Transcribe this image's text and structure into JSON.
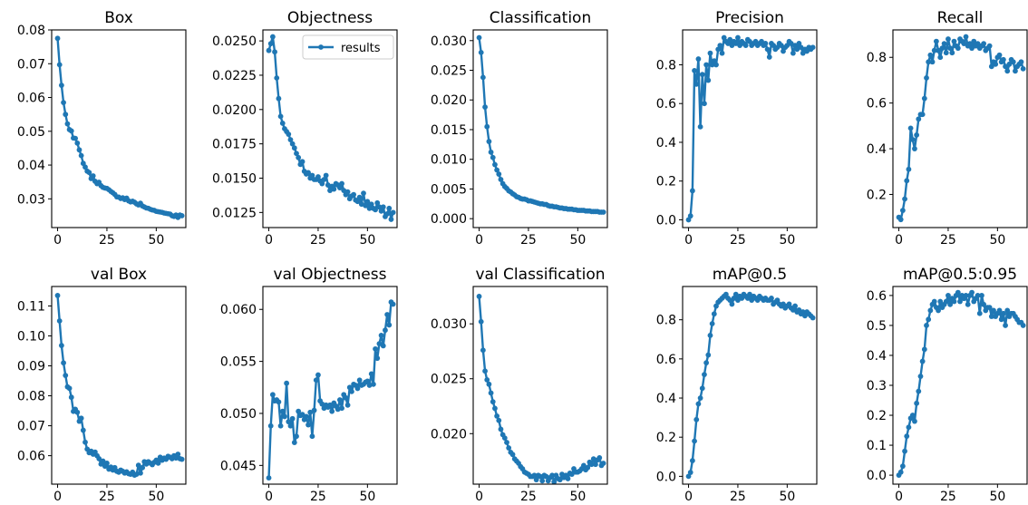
{
  "legend_label": "results",
  "line_color": "#1f77b4",
  "chart_data": [
    {
      "type": "line",
      "title": "Box",
      "xlim": [
        -3,
        65
      ],
      "ylim": [
        0.0215,
        0.08
      ],
      "xticks": [
        0,
        25,
        50
      ],
      "xtick_labels": [
        "0",
        "25",
        "50"
      ],
      "yticks": [
        0.03,
        0.04,
        0.05,
        0.06,
        0.07,
        0.08
      ],
      "ytick_labels": [
        "0.03",
        "0.04",
        "0.05",
        "0.06",
        "0.07",
        "0.08"
      ],
      "series": [
        {
          "values": [
            0.0775,
            0.0697,
            0.0636,
            0.0585,
            0.055,
            0.0522,
            0.0505,
            0.0501,
            0.048,
            0.0479,
            0.0465,
            0.0445,
            0.0428,
            0.0405,
            0.0394,
            0.0382,
            0.0378,
            0.036,
            0.0368,
            0.0352,
            0.0345,
            0.0349,
            0.0339,
            0.0334,
            0.0332,
            0.0331,
            0.0327,
            0.0322,
            0.0318,
            0.0313,
            0.0306,
            0.0305,
            0.0301,
            0.0303,
            0.0298,
            0.0302,
            0.0294,
            0.0291,
            0.0293,
            0.029,
            0.0285,
            0.0282,
            0.0287,
            0.0279,
            0.0276,
            0.0273,
            0.0272,
            0.0269,
            0.0267,
            0.0266,
            0.0263,
            0.0262,
            0.0261,
            0.026,
            0.0258,
            0.0257,
            0.0256,
            0.0255,
            0.025,
            0.0248,
            0.0252,
            0.0245,
            0.0252,
            0.025
          ]
        }
      ]
    },
    {
      "type": "line",
      "title": "Objectness",
      "xlim": [
        -3,
        65
      ],
      "ylim": [
        0.0114,
        0.0258
      ],
      "xticks": [
        0,
        25,
        50
      ],
      "xtick_labels": [
        "0",
        "25",
        "50"
      ],
      "yticks": [
        0.0125,
        0.015,
        0.0175,
        0.02,
        0.0225,
        0.025
      ],
      "ytick_labels": [
        "0.0125",
        "0.0150",
        "0.0175",
        "0.0200",
        "0.0225",
        "0.0250"
      ],
      "legend": [
        "results"
      ],
      "series": [
        {
          "name": "results",
          "values": [
            0.0243,
            0.0248,
            0.0253,
            0.0242,
            0.0223,
            0.0208,
            0.0195,
            0.019,
            0.0186,
            0.0184,
            0.0182,
            0.0178,
            0.0175,
            0.0172,
            0.0168,
            0.0165,
            0.016,
            0.0162,
            0.0155,
            0.0153,
            0.0154,
            0.015,
            0.0152,
            0.0149,
            0.0149,
            0.0151,
            0.0148,
            0.0146,
            0.0149,
            0.0152,
            0.0145,
            0.0141,
            0.0144,
            0.0142,
            0.0146,
            0.0145,
            0.0143,
            0.0146,
            0.0141,
            0.0138,
            0.014,
            0.0135,
            0.0137,
            0.0138,
            0.0134,
            0.0133,
            0.0136,
            0.0131,
            0.0139,
            0.013,
            0.0133,
            0.0128,
            0.0131,
            0.0128,
            0.0127,
            0.0132,
            0.0129,
            0.0126,
            0.0129,
            0.0122,
            0.0124,
            0.0128,
            0.012,
            0.0125
          ]
        }
      ]
    },
    {
      "type": "line",
      "title": "Classification",
      "xlim": [
        -3,
        65
      ],
      "ylim": [
        -0.0015,
        0.0318
      ],
      "xticks": [
        0,
        25,
        50
      ],
      "xtick_labels": [
        "0",
        "25",
        "50"
      ],
      "yticks": [
        0,
        0.005,
        0.01,
        0.015,
        0.02,
        0.025,
        0.03
      ],
      "ytick_labels": [
        "0.000",
        "0.005",
        "0.010",
        "0.015",
        "0.020",
        "0.025",
        "0.030"
      ],
      "series": [
        {
          "values": [
            0.0305,
            0.028,
            0.0238,
            0.0188,
            0.0155,
            0.013,
            0.0112,
            0.0103,
            0.0091,
            0.0082,
            0.0075,
            0.0066,
            0.0059,
            0.0054,
            0.0051,
            0.0047,
            0.0045,
            0.0042,
            0.004,
            0.0037,
            0.0036,
            0.0034,
            0.0033,
            0.0033,
            0.0032,
            0.003,
            0.003,
            0.0029,
            0.0028,
            0.0027,
            0.0026,
            0.0025,
            0.0025,
            0.0024,
            0.0024,
            0.0022,
            0.0021,
            0.0021,
            0.002,
            0.002,
            0.0019,
            0.0018,
            0.0018,
            0.0017,
            0.0017,
            0.0016,
            0.0016,
            0.0016,
            0.0015,
            0.0015,
            0.0014,
            0.0014,
            0.0014,
            0.0014,
            0.0013,
            0.0013,
            0.0013,
            0.0012,
            0.0012,
            0.0012,
            0.0012,
            0.0011,
            0.0011,
            0.0011
          ]
        }
      ]
    },
    {
      "type": "line",
      "title": "Precision",
      "xlim": [
        -3,
        65
      ],
      "ylim": [
        -0.04,
        0.98
      ],
      "xticks": [
        0,
        25,
        50
      ],
      "xtick_labels": [
        "0",
        "25",
        "50"
      ],
      "yticks": [
        0,
        0.2,
        0.4,
        0.6,
        0.8
      ],
      "ytick_labels": [
        "0.0",
        "0.2",
        "0.4",
        "0.6",
        "0.8"
      ],
      "series": [
        {
          "values": [
            0,
            0.02,
            0.15,
            0.77,
            0.7,
            0.83,
            0.48,
            0.75,
            0.6,
            0.8,
            0.72,
            0.86,
            0.8,
            0.82,
            0.8,
            0.88,
            0.9,
            0.86,
            0.94,
            0.92,
            0.91,
            0.93,
            0.9,
            0.92,
            0.91,
            0.94,
            0.9,
            0.92,
            0.91,
            0.9,
            0.93,
            0.92,
            0.9,
            0.91,
            0.92,
            0.9,
            0.91,
            0.92,
            0.9,
            0.91,
            0.88,
            0.84,
            0.91,
            0.9,
            0.88,
            0.89,
            0.91,
            0.9,
            0.87,
            0.89,
            0.9,
            0.92,
            0.91,
            0.86,
            0.9,
            0.88,
            0.91,
            0.89,
            0.86,
            0.88,
            0.87,
            0.89,
            0.88,
            0.89
          ]
        }
      ]
    },
    {
      "type": "line",
      "title": "Recall",
      "xlim": [
        -3,
        65
      ],
      "ylim": [
        0.055,
        0.92
      ],
      "xticks": [
        0,
        25,
        50
      ],
      "xtick_labels": [
        "0",
        "25",
        "50"
      ],
      "yticks": [
        0.2,
        0.4,
        0.6,
        0.8
      ],
      "ytick_labels": [
        "0.2",
        "0.4",
        "0.6",
        "0.8"
      ],
      "series": [
        {
          "values": [
            0.1,
            0.09,
            0.13,
            0.18,
            0.26,
            0.31,
            0.49,
            0.44,
            0.4,
            0.46,
            0.53,
            0.55,
            0.55,
            0.62,
            0.71,
            0.78,
            0.81,
            0.78,
            0.83,
            0.87,
            0.83,
            0.8,
            0.84,
            0.86,
            0.82,
            0.88,
            0.84,
            0.82,
            0.87,
            0.85,
            0.84,
            0.88,
            0.87,
            0.86,
            0.89,
            0.85,
            0.86,
            0.84,
            0.87,
            0.85,
            0.86,
            0.84,
            0.85,
            0.86,
            0.83,
            0.84,
            0.85,
            0.76,
            0.78,
            0.77,
            0.8,
            0.81,
            0.78,
            0.79,
            0.76,
            0.74,
            0.77,
            0.79,
            0.78,
            0.74,
            0.76,
            0.77,
            0.78,
            0.75
          ]
        }
      ]
    },
    {
      "type": "line",
      "title": "val Box",
      "xlim": [
        -3,
        65
      ],
      "ylim": [
        0.0505,
        0.1165
      ],
      "xticks": [
        0,
        25,
        50
      ],
      "xtick_labels": [
        "0",
        "25",
        "50"
      ],
      "yticks": [
        0.06,
        0.07,
        0.08,
        0.09,
        0.1,
        0.11
      ],
      "ytick_labels": [
        "0.06",
        "0.07",
        "0.08",
        "0.09",
        "0.10",
        "0.11"
      ],
      "series": [
        {
          "values": [
            0.1135,
            0.105,
            0.0968,
            0.091,
            0.0868,
            0.083,
            0.0825,
            0.0795,
            0.0748,
            0.0755,
            0.0745,
            0.0715,
            0.0725,
            0.0685,
            0.0645,
            0.0622,
            0.061,
            0.0615,
            0.0605,
            0.0612,
            0.06,
            0.059,
            0.0572,
            0.0582,
            0.0565,
            0.0575,
            0.0555,
            0.0562,
            0.0552,
            0.056,
            0.0548,
            0.0545,
            0.0552,
            0.0548,
            0.0542,
            0.0546,
            0.054,
            0.0538,
            0.0545,
            0.0535,
            0.0538,
            0.0568,
            0.0542,
            0.056,
            0.058,
            0.0572,
            0.058,
            0.0575,
            0.057,
            0.0578,
            0.0585,
            0.0575,
            0.0595,
            0.0585,
            0.0592,
            0.0588,
            0.0598,
            0.0595,
            0.059,
            0.06,
            0.0592,
            0.0605,
            0.059,
            0.0588
          ]
        }
      ]
    },
    {
      "type": "line",
      "title": "val Objectness",
      "xlim": [
        -3,
        65
      ],
      "ylim": [
        0.0432,
        0.0622
      ],
      "xticks": [
        0,
        25,
        50
      ],
      "xtick_labels": [
        "0",
        "25",
        "50"
      ],
      "yticks": [
        0.045,
        0.05,
        0.055,
        0.06
      ],
      "ytick_labels": [
        "0.045",
        "0.050",
        "0.055",
        "0.060"
      ],
      "series": [
        {
          "values": [
            0.0438,
            0.0488,
            0.0518,
            0.0512,
            0.0513,
            0.0511,
            0.0488,
            0.0502,
            0.0497,
            0.0529,
            0.0492,
            0.0488,
            0.0495,
            0.0472,
            0.0478,
            0.0502,
            0.0498,
            0.0499,
            0.0494,
            0.0497,
            0.0489,
            0.0501,
            0.0478,
            0.0503,
            0.0532,
            0.0537,
            0.0512,
            0.0509,
            0.0505,
            0.0508,
            0.0506,
            0.0508,
            0.0502,
            0.051,
            0.0507,
            0.0504,
            0.0513,
            0.0505,
            0.0518,
            0.0515,
            0.0508,
            0.0525,
            0.0521,
            0.0528,
            0.0527,
            0.0524,
            0.0532,
            0.0527,
            0.0528,
            0.053,
            0.0531,
            0.0527,
            0.0538,
            0.0528,
            0.0562,
            0.0553,
            0.0567,
            0.0575,
            0.0565,
            0.058,
            0.0595,
            0.0585,
            0.0607,
            0.0605
          ]
        }
      ]
    },
    {
      "type": "line",
      "title": "val Classification",
      "xlim": [
        -3,
        65
      ],
      "ylim": [
        0.0154,
        0.0334
      ],
      "xticks": [
        0,
        25,
        50
      ],
      "xtick_labels": [
        "0",
        "25",
        "50"
      ],
      "yticks": [
        0.02,
        0.025,
        0.03
      ],
      "ytick_labels": [
        "0.020",
        "0.025",
        "0.030"
      ],
      "series": [
        {
          "values": [
            0.0325,
            0.0302,
            0.0276,
            0.0257,
            0.0249,
            0.0245,
            0.0237,
            0.0229,
            0.0223,
            0.0216,
            0.0212,
            0.0204,
            0.0199,
            0.0196,
            0.0192,
            0.0187,
            0.0183,
            0.0181,
            0.0177,
            0.0175,
            0.0173,
            0.017,
            0.0168,
            0.0165,
            0.0164,
            0.0163,
            0.0161,
            0.0161,
            0.0162,
            0.0158,
            0.0162,
            0.0161,
            0.0157,
            0.0162,
            0.0161,
            0.0157,
            0.016,
            0.0162,
            0.0156,
            0.0162,
            0.0159,
            0.0158,
            0.0163,
            0.016,
            0.0162,
            0.0159,
            0.0164,
            0.0163,
            0.0168,
            0.0165,
            0.0165,
            0.0166,
            0.0168,
            0.0171,
            0.0167,
            0.0169,
            0.0174,
            0.0172,
            0.0177,
            0.0172,
            0.0176,
            0.0178,
            0.0171,
            0.0173
          ]
        }
      ]
    },
    {
      "type": "line",
      "title": "mAP@0.5",
      "xlim": [
        -3,
        65
      ],
      "ylim": [
        -0.04,
        0.97
      ],
      "xticks": [
        0,
        25,
        50
      ],
      "xtick_labels": [
        "0",
        "25",
        "50"
      ],
      "yticks": [
        0,
        0.2,
        0.4,
        0.6,
        0.8
      ],
      "ytick_labels": [
        "0.0",
        "0.2",
        "0.4",
        "0.6",
        "0.8"
      ],
      "series": [
        {
          "values": [
            0,
            0.02,
            0.08,
            0.18,
            0.29,
            0.37,
            0.4,
            0.45,
            0.52,
            0.58,
            0.62,
            0.72,
            0.78,
            0.83,
            0.87,
            0.89,
            0.9,
            0.91,
            0.92,
            0.93,
            0.91,
            0.9,
            0.88,
            0.91,
            0.93,
            0.9,
            0.92,
            0.91,
            0.93,
            0.92,
            0.91,
            0.93,
            0.9,
            0.92,
            0.91,
            0.9,
            0.92,
            0.91,
            0.9,
            0.91,
            0.9,
            0.9,
            0.91,
            0.88,
            0.89,
            0.9,
            0.88,
            0.87,
            0.88,
            0.86,
            0.87,
            0.88,
            0.86,
            0.85,
            0.87,
            0.84,
            0.85,
            0.83,
            0.84,
            0.82,
            0.84,
            0.83,
            0.82,
            0.81
          ]
        }
      ]
    },
    {
      "type": "line",
      "title": "mAP@0.5:0.95",
      "xlim": [
        -3,
        65
      ],
      "ylim": [
        -0.03,
        0.63
      ],
      "xticks": [
        0,
        25,
        50
      ],
      "xtick_labels": [
        "0",
        "25",
        "50"
      ],
      "yticks": [
        0,
        0.1,
        0.2,
        0.3,
        0.4,
        0.5,
        0.6
      ],
      "ytick_labels": [
        "0.0",
        "0.1",
        "0.2",
        "0.3",
        "0.4",
        "0.5",
        "0.6"
      ],
      "series": [
        {
          "values": [
            0,
            0.01,
            0.03,
            0.08,
            0.13,
            0.16,
            0.19,
            0.2,
            0.18,
            0.24,
            0.28,
            0.33,
            0.38,
            0.42,
            0.5,
            0.52,
            0.55,
            0.57,
            0.58,
            0.56,
            0.55,
            0.58,
            0.56,
            0.57,
            0.58,
            0.6,
            0.57,
            0.59,
            0.58,
            0.6,
            0.61,
            0.58,
            0.6,
            0.59,
            0.6,
            0.57,
            0.6,
            0.61,
            0.58,
            0.59,
            0.6,
            0.54,
            0.6,
            0.57,
            0.55,
            0.56,
            0.56,
            0.53,
            0.55,
            0.53,
            0.54,
            0.55,
            0.52,
            0.54,
            0.5,
            0.55,
            0.53,
            0.54,
            0.54,
            0.53,
            0.52,
            0.51,
            0.51,
            0.5
          ]
        }
      ]
    }
  ]
}
